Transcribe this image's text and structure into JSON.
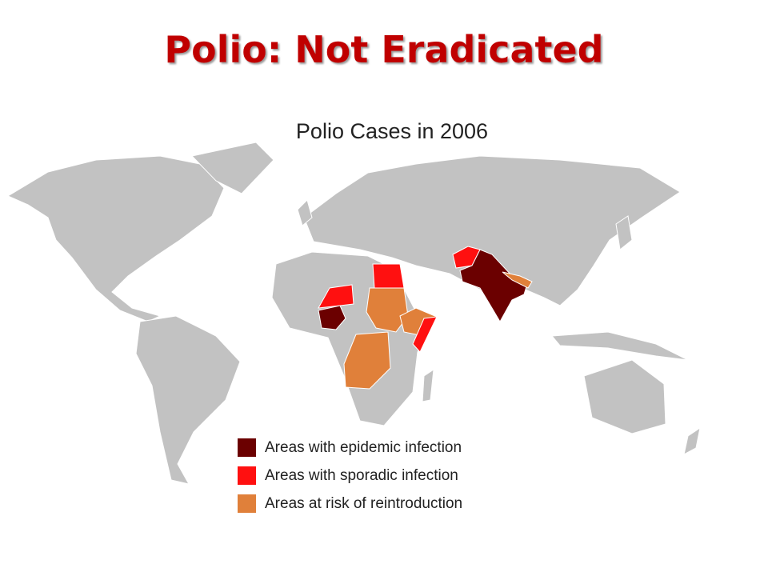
{
  "title": "Polio: Not Eradicated",
  "map": {
    "title": "Polio Cases in 2006",
    "legend": [
      {
        "name": "Areas with epidemic infection",
        "color": "#6b0000"
      },
      {
        "name": "Areas with sporadic infection",
        "color": "#ff1010"
      },
      {
        "name": "Areas at risk of reintroduction",
        "color": "#e0803a"
      }
    ]
  }
}
